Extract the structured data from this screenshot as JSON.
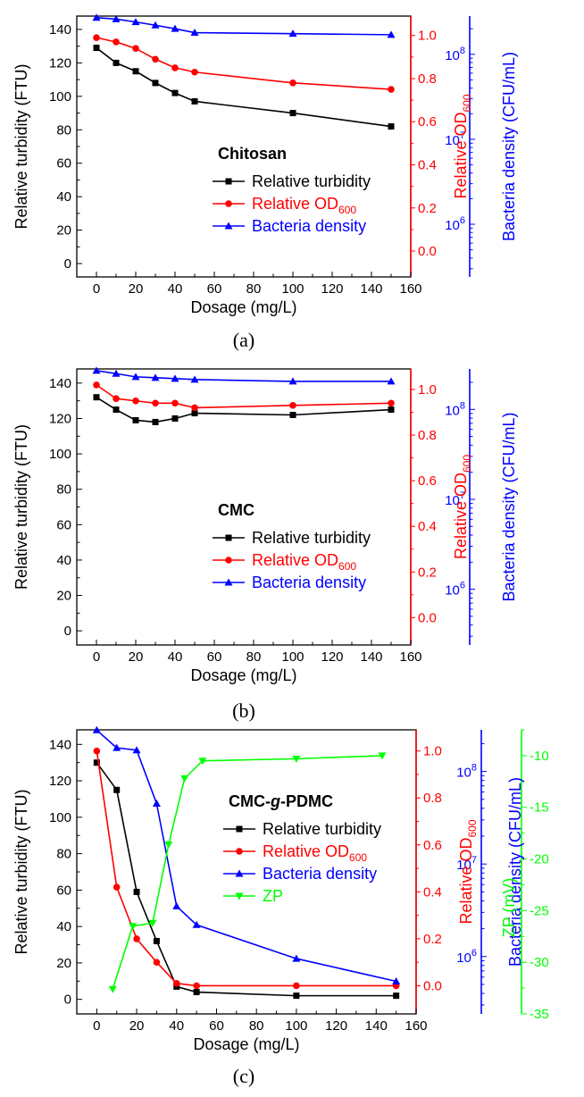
{
  "chart_data": [
    {
      "type": "line",
      "panel_label": "(a)",
      "annotation": "Chitosan",
      "xlabel": "Dosage (mg/L)",
      "ylabel": "Relative turbidity (FTU)",
      "y2label_main": "Relative OD",
      "y2label_sub": "600",
      "y3label": "Bacteria density (CFU/mL)",
      "xlim": [
        -10,
        160
      ],
      "ylim": [
        -8,
        148
      ],
      "y2lim": [
        -0.12,
        1.09
      ],
      "y3lim_log10": [
        5.38,
        8.45
      ],
      "x_ticks": [
        0,
        20,
        40,
        60,
        80,
        100,
        120,
        140,
        160
      ],
      "y_ticks": [
        0,
        20,
        40,
        60,
        80,
        100,
        120,
        140
      ],
      "y2_ticks": [
        0.0,
        0.2,
        0.4,
        0.6,
        0.8,
        1.0
      ],
      "y3_ticks": [
        {
          "exp": "6",
          "value": 1000000
        },
        {
          "exp": "7",
          "value": 10000000
        },
        {
          "exp": "8",
          "value": 100000000
        }
      ],
      "series": [
        {
          "name": "Relative turbidity",
          "axis": "left",
          "color": "#000000",
          "marker": "square",
          "x": [
            0,
            10,
            20,
            30,
            40,
            50,
            100,
            150
          ],
          "values": [
            129,
            120,
            115,
            108,
            102,
            97,
            90,
            82
          ]
        },
        {
          "name": "Relative OD",
          "name_sub": "600",
          "axis": "right",
          "color": "#ff0000",
          "marker": "circle",
          "x": [
            0,
            10,
            20,
            30,
            40,
            50,
            100,
            150
          ],
          "values": [
            0.99,
            0.97,
            0.94,
            0.89,
            0.85,
            0.83,
            0.78,
            0.75
          ]
        },
        {
          "name": "Bacteria density",
          "axis": "log",
          "color": "#0000ff",
          "marker": "triangle-up",
          "x": [
            0,
            10,
            20,
            30,
            40,
            50,
            100,
            150
          ],
          "values": [
            270000000,
            260000000,
            240000000,
            220000000,
            200000000,
            180000000,
            175000000,
            170000000
          ]
        }
      ]
    },
    {
      "type": "line",
      "panel_label": "(b)",
      "annotation": "CMC",
      "xlabel": "Dosage (mg/L)",
      "ylabel": "Relative turbidity (FTU)",
      "y2label_main": "Relative OD",
      "y2label_sub": "600",
      "y3label": "Bacteria density (CFU/mL)",
      "xlim": [
        -10,
        160
      ],
      "ylim": [
        -8,
        148
      ],
      "y2lim": [
        -0.12,
        1.09
      ],
      "y3lim_log10": [
        5.38,
        8.45
      ],
      "x_ticks": [
        0,
        20,
        40,
        60,
        80,
        100,
        120,
        140,
        160
      ],
      "y_ticks": [
        0,
        20,
        40,
        60,
        80,
        100,
        120,
        140
      ],
      "y2_ticks": [
        0.0,
        0.2,
        0.4,
        0.6,
        0.8,
        1.0
      ],
      "y3_ticks": [
        {
          "exp": "6",
          "value": 1000000
        },
        {
          "exp": "7",
          "value": 10000000
        },
        {
          "exp": "8",
          "value": 100000000
        }
      ],
      "series": [
        {
          "name": "Relative turbidity",
          "axis": "left",
          "color": "#000000",
          "marker": "square",
          "x": [
            0,
            10,
            20,
            30,
            40,
            50,
            100,
            150
          ],
          "values": [
            132,
            125,
            119,
            118,
            120,
            123,
            122,
            125
          ]
        },
        {
          "name": "Relative OD",
          "name_sub": "600",
          "axis": "right",
          "color": "#ff0000",
          "marker": "circle",
          "x": [
            0,
            10,
            20,
            30,
            40,
            50,
            100,
            150
          ],
          "values": [
            1.02,
            0.96,
            0.95,
            0.94,
            0.94,
            0.92,
            0.93,
            0.94
          ]
        },
        {
          "name": "Bacteria density",
          "axis": "log",
          "color": "#0000ff",
          "marker": "triangle-up",
          "x": [
            0,
            10,
            20,
            30,
            40,
            50,
            100,
            150
          ],
          "values": [
            270000000,
            250000000,
            230000000,
            225000000,
            220000000,
            215000000,
            205000000,
            205000000
          ]
        }
      ]
    },
    {
      "type": "line",
      "panel_label": "(c)",
      "annotation_pre": "CMC-",
      "annotation_ital": "g",
      "annotation_post": "-PDMC",
      "xlabel": "Dosage (mg/L)",
      "ylabel": "Relative turbidity (FTU)",
      "y2label_main": "Relative OD",
      "y2label_sub": "600",
      "y3label": "Bacteria density (CFU/mL)",
      "y4label": "ZP (mV)",
      "xlim": [
        -10,
        160
      ],
      "ylim": [
        -8,
        148
      ],
      "y2lim": [
        -0.12,
        1.09
      ],
      "y3lim_log10": [
        5.38,
        8.45
      ],
      "y4lim": [
        -35,
        -7.5
      ],
      "x_ticks": [
        0,
        20,
        40,
        60,
        80,
        100,
        120,
        140,
        160
      ],
      "y_ticks": [
        0,
        20,
        40,
        60,
        80,
        100,
        120,
        140
      ],
      "y2_ticks": [
        0.0,
        0.2,
        0.4,
        0.6,
        0.8,
        1.0
      ],
      "y3_ticks": [
        {
          "exp": "6",
          "value": 1000000
        },
        {
          "exp": "7",
          "value": 10000000
        },
        {
          "exp": "8",
          "value": 100000000
        }
      ],
      "y4_ticks": [
        -35,
        -30,
        -25,
        -20,
        -15,
        -10
      ],
      "series": [
        {
          "name": "Relative turbidity",
          "axis": "left",
          "color": "#000000",
          "marker": "square",
          "x": [
            0,
            10,
            20,
            30,
            40,
            50,
            100,
            150
          ],
          "values": [
            130,
            115,
            59,
            32,
            7,
            4,
            2,
            2
          ]
        },
        {
          "name": "Relative OD",
          "name_sub": "600",
          "axis": "right",
          "color": "#ff0000",
          "marker": "circle",
          "x": [
            0,
            10,
            20,
            30,
            40,
            50,
            100,
            150
          ],
          "values": [
            1.0,
            0.42,
            0.2,
            0.1,
            0.01,
            0.0,
            0.0,
            0.0
          ]
        },
        {
          "name": "Bacteria density",
          "axis": "log",
          "color": "#0000ff",
          "marker": "triangle-up",
          "x": [
            0,
            10,
            20,
            30,
            40,
            50,
            100,
            150
          ],
          "values": [
            280000000,
            180000000,
            170000000,
            45000000,
            3500000,
            2200000,
            950000,
            540000
          ]
        },
        {
          "name": "ZP",
          "axis": "zp",
          "color": "#00ff00",
          "marker": "triangle-down",
          "x": [
            8,
            18,
            28,
            36,
            44,
            53,
            100,
            143
          ],
          "values": [
            -32.6,
            -26.5,
            -26.2,
            -18.6,
            -12.2,
            -10.5,
            -10.3,
            -10.0
          ]
        }
      ]
    }
  ]
}
